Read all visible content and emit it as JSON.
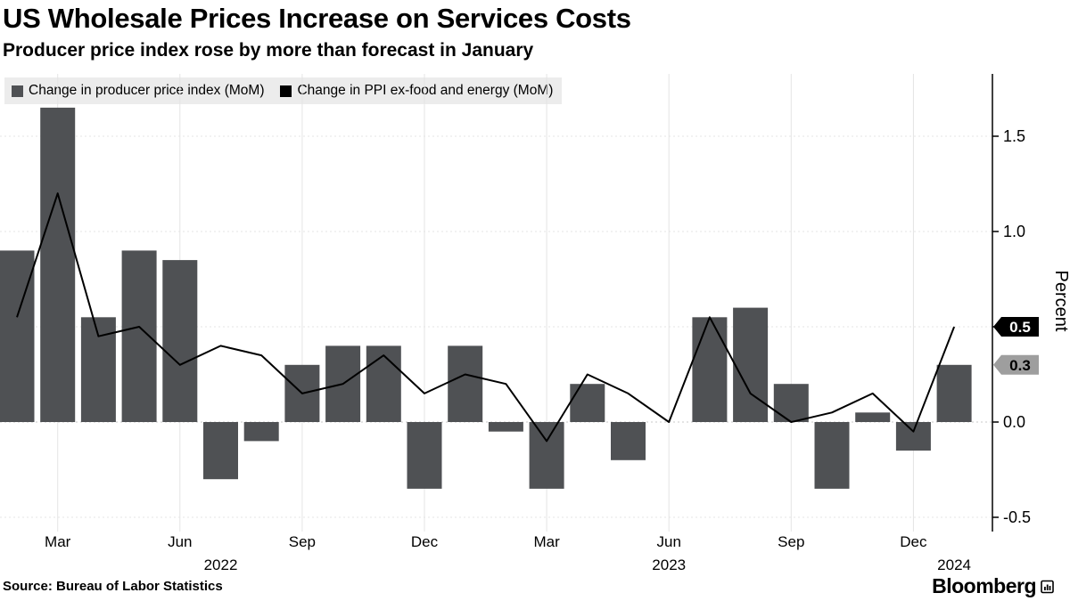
{
  "header": {
    "title": "US Wholesale Prices Increase on Services Costs",
    "subtitle": "Producer price index rose by more than forecast in January"
  },
  "legend": {
    "items": [
      {
        "label": "Change in producer price index (MoM)",
        "color": "#4f5154"
      },
      {
        "label": "Change in PPI ex-food and energy (MoM)",
        "color": "#000000"
      }
    ]
  },
  "chart_data": {
    "type": "bar",
    "title": "US Wholesale Prices Increase on Services Costs",
    "subtitle": "Producer price index rose by more than forecast in January",
    "ylabel": "Percent",
    "ylim": [
      -0.58,
      1.83
    ],
    "grid": true,
    "legend_position": "top-left",
    "x": [
      "Feb 2022",
      "Mar 2022",
      "Apr 2022",
      "May 2022",
      "Jun 2022",
      "Jul 2022",
      "Aug 2022",
      "Sep 2022",
      "Oct 2022",
      "Nov 2022",
      "Dec 2022",
      "Jan 2023",
      "Feb 2023",
      "Mar 2023",
      "Apr 2023",
      "May 2023",
      "Jun 2023",
      "Jul 2023",
      "Aug 2023",
      "Sep 2023",
      "Oct 2023",
      "Nov 2023",
      "Dec 2023",
      "Jan 2024"
    ],
    "series": [
      {
        "name": "Change in producer price index (MoM)",
        "type": "bar",
        "color": "#4f5154",
        "values": [
          0.9,
          1.65,
          0.55,
          0.9,
          0.85,
          -0.3,
          -0.1,
          0.3,
          0.4,
          0.4,
          -0.35,
          0.4,
          -0.05,
          -0.35,
          0.2,
          -0.2,
          0.0,
          0.55,
          0.6,
          0.2,
          -0.35,
          0.05,
          -0.15,
          0.3
        ]
      },
      {
        "name": "Change in PPI ex-food and energy (MoM)",
        "type": "line",
        "color": "#000000",
        "values": [
          0.55,
          1.2,
          0.45,
          0.5,
          0.3,
          0.4,
          0.35,
          0.15,
          0.2,
          0.35,
          0.15,
          0.25,
          0.2,
          -0.1,
          0.25,
          0.15,
          0.0,
          0.55,
          0.15,
          0.0,
          0.05,
          0.15,
          -0.05,
          0.5
        ]
      }
    ],
    "yticks": [
      {
        "label": "1.5",
        "value": 1.5
      },
      {
        "label": "1.0",
        "value": 1.0
      },
      {
        "label": "0.5",
        "value": 0.5
      },
      {
        "label": "0.0",
        "value": 0.0
      },
      {
        "label": "-0.5",
        "value": -0.5
      }
    ],
    "xticks": [
      {
        "label": "Mar",
        "index": 1
      },
      {
        "label": "Jun",
        "index": 4
      },
      {
        "label": "Sep",
        "index": 7
      },
      {
        "label": "Dec",
        "index": 10
      },
      {
        "label": "Mar",
        "index": 13
      },
      {
        "label": "Jun",
        "index": 16
      },
      {
        "label": "Sep",
        "index": 19
      },
      {
        "label": "Dec",
        "index": 22
      }
    ],
    "year_labels": [
      {
        "label": "2022",
        "index": 5
      },
      {
        "label": "2023",
        "index": 16
      },
      {
        "label": "2024",
        "index": 23
      }
    ],
    "end_badges": [
      {
        "label": "0.5",
        "value": 0.5,
        "bg": "#000000",
        "fg": "#ffffff"
      },
      {
        "label": "0.3",
        "value": 0.3,
        "bg": "#9e9e9e",
        "fg": "#000000"
      }
    ]
  },
  "footer": {
    "source": "Source: Bureau of Labor Statistics",
    "logo": "Bloomberg"
  }
}
